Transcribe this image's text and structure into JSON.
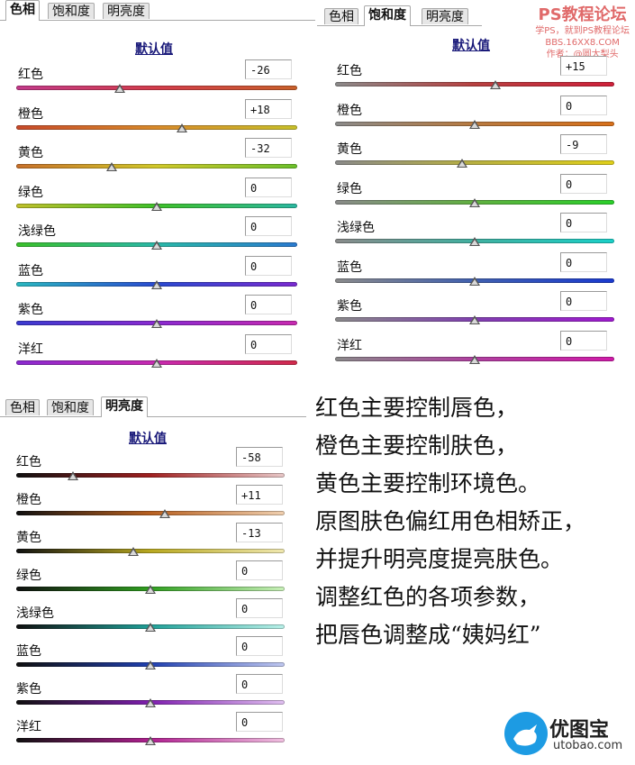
{
  "tabs": [
    "色相",
    "饱和度",
    "明亮度"
  ],
  "default_label": "默认值",
  "colors": [
    "红色",
    "橙色",
    "黄色",
    "绿色",
    "浅绿色",
    "蓝色",
    "紫色",
    "洋红"
  ],
  "panels": [
    {
      "id": "hue",
      "active_tab": 0,
      "values": [
        "-26",
        "+18",
        "-32",
        "0",
        "0",
        "0",
        "0",
        "0"
      ],
      "levels": [
        -26,
        18,
        -32,
        0,
        0,
        0,
        0,
        0
      ]
    },
    {
      "id": "saturation",
      "active_tab": 1,
      "values": [
        "+15",
        "0",
        "-9",
        "0",
        "0",
        "0",
        "0",
        "0"
      ],
      "levels": [
        15,
        0,
        -9,
        0,
        0,
        0,
        0,
        0
      ]
    },
    {
      "id": "luminance",
      "active_tab": 2,
      "values": [
        "-58",
        "+11",
        "-13",
        "0",
        "0",
        "0",
        "0",
        "0"
      ],
      "levels": [
        -58,
        11,
        -13,
        0,
        0,
        0,
        0,
        0
      ]
    }
  ],
  "notes": [
    "红色主要控制唇色，",
    "橙色主要控制肤色，",
    "黄色主要控制环境色。",
    "原图肤色偏红用色相矫正，",
    "并提升明亮度提亮肤色。",
    "调整红色的各项参数，",
    "把唇色调整成“姨妈红”"
  ],
  "watermark": {
    "title": "PS教程论坛",
    "line1": "学PS，就到PS教程论坛",
    "line2": "BBS.16XX8.COM",
    "line3": "作者：@圆大梨头"
  },
  "logo": {
    "brand": "优图宝",
    "url": "utobao.com"
  },
  "palette": {
    "accent": "#1a1a7a",
    "watermark": "#e06a6a",
    "logo_blue": "#1d9be3"
  }
}
